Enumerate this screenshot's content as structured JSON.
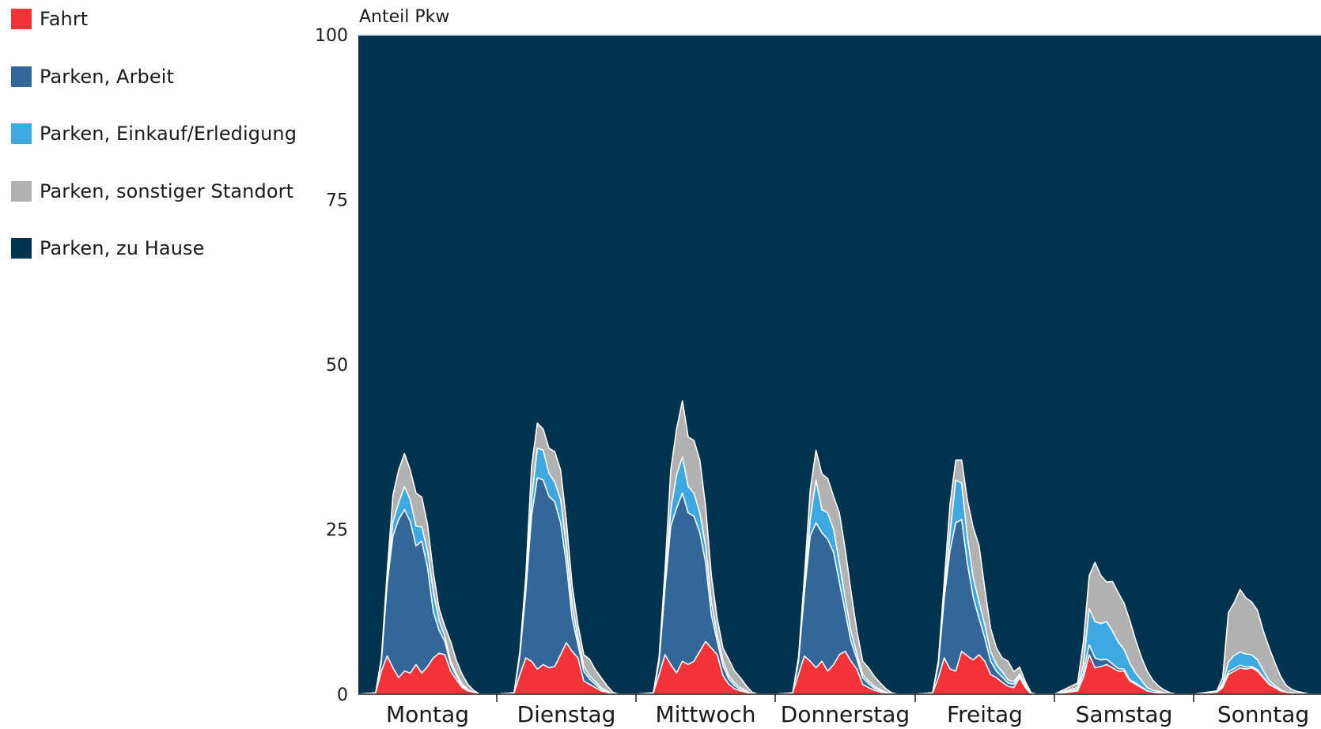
{
  "chart_data": {
    "type": "area",
    "stacked": true,
    "ylabel": "Anteil Pkw",
    "ylim": [
      0,
      100
    ],
    "yticks": [
      0,
      25,
      50,
      75,
      100
    ],
    "categories": [
      "Montag",
      "Dienstag",
      "Mittwoch",
      "Donnerstag",
      "Freitag",
      "Samstag",
      "Sonntag"
    ],
    "legend_position": "left",
    "grid": false,
    "series": [
      {
        "name": "Fahrt",
        "color": "#f23338"
      },
      {
        "name": "Parken,  Arbeit",
        "color": "#336699"
      },
      {
        "name": "Parken,  Einkauf/Erledigung",
        "color": "#3ea9e0"
      },
      {
        "name": "Parken,  sonstiger Standort",
        "color": "#b1b1b1"
      },
      {
        "name": "Parken,  zu Hause",
        "color": "#00334d"
      }
    ],
    "days": [
      {
        "day": "Montag",
        "t": [
          0,
          3,
          4,
          5,
          6,
          7,
          8,
          9,
          10,
          11,
          12,
          13,
          14,
          15,
          16,
          17,
          18,
          19,
          20,
          21,
          22,
          23,
          24
        ],
        "fahrt": [
          0,
          0.2,
          3.5,
          5.8,
          4,
          2.5,
          3.5,
          3.2,
          4.5,
          3.2,
          4.2,
          5.5,
          6.2,
          6,
          3.5,
          2.2,
          1,
          0.5,
          0.3,
          0,
          0,
          0,
          0
        ],
        "arbeit": [
          0,
          0,
          1.5,
          11,
          20,
          24,
          24.5,
          23,
          18,
          20,
          15,
          7,
          3.5,
          2,
          1,
          0.5,
          0.2,
          0,
          0,
          0,
          0,
          0,
          0
        ],
        "einkauf": [
          0,
          0,
          0.2,
          0.8,
          2.2,
          2.5,
          3.5,
          3.3,
          3,
          2.2,
          2.5,
          3,
          1.5,
          0.8,
          0.5,
          0.4,
          0.3,
          0.2,
          0,
          0,
          0,
          0,
          0
        ],
        "sonstiger": [
          0,
          0,
          0.3,
          1,
          4,
          5,
          5,
          4.5,
          5,
          4.5,
          4,
          3,
          1.8,
          1.5,
          3,
          2,
          1.5,
          0.8,
          0.3,
          0,
          0,
          0,
          0
        ]
      },
      {
        "day": "Dienstag",
        "t": [
          0,
          3,
          4,
          5,
          6,
          7,
          8,
          9,
          10,
          11,
          12,
          13,
          14,
          15,
          16,
          17,
          18,
          19,
          20,
          21,
          22,
          23,
          24
        ],
        "fahrt": [
          0,
          0.2,
          3,
          5.5,
          5,
          3.8,
          4.5,
          4,
          4.2,
          6,
          7.8,
          6.5,
          5.5,
          2,
          1.5,
          1,
          0.5,
          0.3,
          0,
          0,
          0,
          0,
          0
        ],
        "arbeit": [
          0,
          0,
          3,
          10,
          22,
          29,
          28,
          26,
          25,
          20,
          12,
          5,
          2,
          1.5,
          0.8,
          0.5,
          0.2,
          0,
          0,
          0,
          0,
          0,
          0
        ],
        "einkauf": [
          0,
          0,
          0.2,
          0.8,
          2.5,
          4.5,
          4.5,
          3.5,
          3,
          3.5,
          2.5,
          2,
          1,
          0.8,
          0.5,
          0.4,
          0.3,
          0.2,
          0,
          0,
          0,
          0,
          0
        ],
        "sonstiger": [
          0,
          0,
          0.4,
          1.5,
          5,
          3.8,
          3.2,
          3.8,
          4.6,
          4.5,
          4,
          3,
          2,
          1.7,
          2.5,
          1.8,
          1.5,
          0.8,
          0.3,
          0,
          0,
          0,
          0
        ]
      },
      {
        "day": "Mittwoch",
        "t": [
          0,
          3,
          4,
          5,
          6,
          7,
          8,
          9,
          10,
          11,
          12,
          13,
          14,
          15,
          16,
          17,
          18,
          19,
          20,
          21,
          22,
          23,
          24
        ],
        "fahrt": [
          0,
          0.2,
          3,
          6,
          4.5,
          3.2,
          5,
          4.5,
          5,
          6.5,
          8,
          7,
          6,
          2.8,
          1.5,
          0.8,
          0.5,
          0.3,
          0,
          0,
          0,
          0,
          0
        ],
        "arbeit": [
          0,
          0,
          2,
          10,
          21,
          25,
          25.5,
          23,
          22,
          18,
          12,
          5,
          2,
          1.5,
          0.8,
          0.5,
          0.2,
          0,
          0,
          0,
          0,
          0,
          0
        ],
        "einkauf": [
          0,
          0,
          0.2,
          0.8,
          2.5,
          5,
          5.5,
          4,
          3.5,
          3,
          2.5,
          2,
          1,
          0.8,
          0.5,
          0.4,
          0.3,
          0.2,
          0,
          0,
          0,
          0,
          0
        ],
        "sonstiger": [
          0,
          0,
          0.5,
          2,
          6,
          7,
          8.5,
          7.5,
          8,
          8,
          6,
          4,
          2.5,
          1.9,
          2.5,
          1.8,
          1.5,
          0.8,
          0.3,
          0,
          0,
          0,
          0
        ]
      },
      {
        "day": "Donnerstag",
        "t": [
          0,
          3,
          4,
          5,
          6,
          7,
          8,
          9,
          10,
          11,
          12,
          13,
          14,
          15,
          16,
          17,
          18,
          19,
          20,
          21,
          22,
          23,
          24
        ],
        "fahrt": [
          0,
          0.2,
          3,
          5.8,
          5,
          4,
          5,
          3.5,
          4.5,
          6,
          6.5,
          5,
          3.8,
          1.5,
          1,
          0.6,
          0.3,
          0.2,
          0,
          0,
          0,
          0,
          0
        ],
        "arbeit": [
          0,
          0,
          2,
          9.5,
          19,
          22,
          19.5,
          20,
          17,
          11,
          6,
          3,
          1.5,
          1,
          0.6,
          0.3,
          0.2,
          0,
          0,
          0,
          0,
          0,
          0
        ],
        "einkauf": [
          0,
          0,
          0.2,
          0.8,
          2.5,
          6.5,
          3.5,
          4,
          3.5,
          3,
          2,
          1.5,
          0.8,
          0.5,
          0.4,
          0.3,
          0.2,
          0.1,
          0,
          0,
          0,
          0,
          0
        ],
        "sonstiger": [
          0,
          0,
          0.4,
          1.7,
          4.5,
          4.5,
          5.4,
          5.2,
          5,
          7.5,
          7.5,
          6,
          3.5,
          2,
          2,
          1.5,
          1,
          0.5,
          0.2,
          0,
          0,
          0,
          0
        ]
      },
      {
        "day": "Freitag",
        "t": [
          0,
          3,
          4,
          5,
          6,
          7,
          8,
          9,
          10,
          11,
          12,
          13,
          14,
          15,
          16,
          17,
          18,
          19,
          20,
          21,
          22,
          23,
          24
        ],
        "fahrt": [
          0,
          0.2,
          2.5,
          5.5,
          3.8,
          3.5,
          6.5,
          5.8,
          5.2,
          6,
          5,
          3,
          2.5,
          1.8,
          1.2,
          1,
          2.5,
          1,
          0,
          0,
          0,
          0,
          0
        ],
        "arbeit": [
          0,
          0,
          2,
          9,
          18,
          22.5,
          20,
          14,
          9.5,
          5.5,
          3.5,
          2,
          1,
          0.8,
          0.5,
          0.5,
          0.3,
          0.2,
          0,
          0,
          0,
          0,
          0
        ],
        "einkauf": [
          0,
          0,
          0.2,
          0.8,
          2.5,
          6.5,
          5.5,
          4,
          3,
          2.5,
          2,
          1.5,
          1,
          0.8,
          0.5,
          0.4,
          0.3,
          0.2,
          0,
          0,
          0,
          0,
          0
        ],
        "sonstiger": [
          0,
          0,
          0.4,
          1.7,
          4.5,
          3,
          3.5,
          5.6,
          7.6,
          8.5,
          5.5,
          3.5,
          2.5,
          2.1,
          2.8,
          1.5,
          1,
          0.5,
          0.2,
          0,
          0,
          0,
          0
        ]
      },
      {
        "day": "Samstag",
        "t": [
          0,
          4,
          5,
          6,
          7,
          8,
          9,
          10,
          11,
          12,
          13,
          14,
          15,
          16,
          17,
          18,
          19,
          20,
          21,
          22,
          23,
          24
        ],
        "fahrt": [
          0,
          0.5,
          2.5,
          6,
          4,
          4.2,
          4.5,
          4,
          3.5,
          3.5,
          2,
          1.5,
          1,
          0.5,
          0.3,
          0.2,
          0.1,
          0,
          0,
          0,
          0,
          0
        ],
        "arbeit": [
          0,
          0.2,
          0.8,
          1.5,
          1.5,
          1,
          0.8,
          0.6,
          0.4,
          0.3,
          0.2,
          0.2,
          0.1,
          0,
          0,
          0,
          0,
          0,
          0,
          0,
          0,
          0
        ],
        "einkauf": [
          0,
          0.3,
          1.2,
          5.5,
          5.5,
          5.5,
          5.7,
          5,
          4,
          3,
          2.5,
          1.5,
          1,
          0.5,
          0.3,
          0.2,
          0.1,
          0,
          0,
          0,
          0,
          0
        ],
        "sonstiger": [
          0,
          0.7,
          3.5,
          5,
          9,
          7.3,
          6,
          7.5,
          7.5,
          7,
          6.5,
          5,
          3.5,
          2.5,
          1.5,
          0.8,
          0.4,
          0.2,
          0,
          0,
          0,
          0
        ]
      },
      {
        "day": "Sonntag",
        "t": [
          0,
          4,
          5,
          6,
          7,
          8,
          9,
          10,
          11,
          12,
          13,
          14,
          15,
          16,
          17,
          18,
          19,
          20,
          21,
          22,
          23,
          24
        ],
        "fahrt": [
          0,
          0.3,
          1,
          3,
          3.5,
          4,
          3.8,
          4,
          3.5,
          2.5,
          1.5,
          1,
          0.5,
          0.3,
          0.2,
          0.1,
          0,
          0,
          0,
          0,
          0,
          0
        ],
        "arbeit": [
          0,
          0,
          0.2,
          0.4,
          0.4,
          0.4,
          0.3,
          0.2,
          0.2,
          0.1,
          0.1,
          0,
          0,
          0,
          0,
          0,
          0,
          0,
          0,
          0,
          0,
          0
        ],
        "einkauf": [
          0,
          0,
          0.3,
          1.5,
          2,
          2,
          2,
          1.8,
          1.5,
          1,
          0.5,
          0.3,
          0.2,
          0,
          0,
          0,
          0,
          0,
          0,
          0,
          0,
          0
        ],
        "sonstiger": [
          0,
          0.2,
          1,
          7.5,
          8,
          9.5,
          8.5,
          8,
          7.5,
          6,
          5,
          3.5,
          2,
          1,
          0.5,
          0.3,
          0.2,
          0,
          0,
          0,
          0,
          0
        ]
      }
    ]
  }
}
